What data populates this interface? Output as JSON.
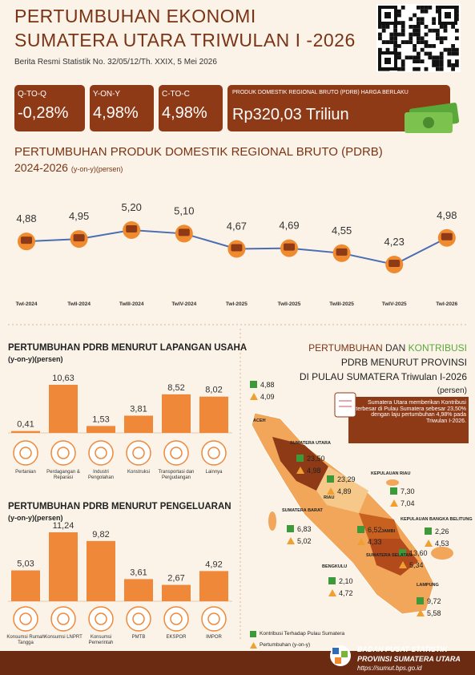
{
  "header": {
    "title_line1": "PERTUMBUHAN EKONOMI",
    "title_line2": "SUMATERA UTARA TRIWULAN I -2026",
    "subtitle": "Berita Resmi Statistik No. 32/05/12/Th. XXIX, 5 Mei 2026"
  },
  "kpis": [
    {
      "label": "Q-TO-Q",
      "value": "-0,28%"
    },
    {
      "label": "Y-ON-Y",
      "value": "4,98%"
    },
    {
      "label": "C-TO-C",
      "value": "4,98%"
    },
    {
      "label": "PRODUK DOMESTIK REGIONAL BRUTO (PDRB) HARGA BERLAKU",
      "value": "Rp320,03 Triliun"
    }
  ],
  "chart_data": [
    {
      "type": "line",
      "title": "PERTUMBUHAN PRODUK DOMESTIK REGIONAL BRUTO (PDRB)",
      "subtitle": "2024-2026",
      "unit_label": "(y-on-y)(persen)",
      "categories": [
        "TwI-2024",
        "TwII-2024",
        "TwIII-2024",
        "TwIV-2024",
        "TwI-2025",
        "TwII-2025",
        "TwIII-2025",
        "TwIV-2025",
        "TwI-2026"
      ],
      "values": [
        4.88,
        4.95,
        5.2,
        5.1,
        4.67,
        4.69,
        4.55,
        4.23,
        4.98
      ],
      "value_labels": [
        "4,88",
        "4,95",
        "5,20",
        "5,10",
        "4,67",
        "4,69",
        "4,55",
        "4,23",
        "4,98"
      ],
      "color": "#4a6db3",
      "marker_color": "#f08a2e"
    },
    {
      "type": "bar",
      "title": "PERTUMBUHAN PDRB MENURUT LAPANGAN USAHA",
      "subtitle": "(y-on-y)(persen)",
      "categories": [
        "Pertanian",
        "Perdagangan & Reparasi",
        "Industri Pengolahan",
        "Konstruksi",
        "Transportasi dan Pergudangan",
        "Lainnya"
      ],
      "values": [
        0.41,
        10.63,
        1.53,
        3.81,
        8.52,
        8.02
      ],
      "value_labels": [
        "0,41",
        "10,63",
        "1,53",
        "3,81",
        "8,52",
        "8,02"
      ],
      "color": "#f0883a"
    },
    {
      "type": "bar",
      "title": "PERTUMBUHAN PDRB MENURUT PENGELUARAN",
      "subtitle": "(y-on-y)(persen)",
      "categories": [
        "Konsumsi Rumah Tangga",
        "Konsumsi LNPRT",
        "Konsumsi Pemerintah",
        "PMTB",
        "EKSPOR",
        "IMPOR"
      ],
      "values": [
        5.03,
        11.24,
        9.82,
        3.61,
        2.67,
        4.92
      ],
      "value_labels": [
        "5,03",
        "11,24",
        "9,82",
        "3,61",
        "2,67",
        "4,92"
      ],
      "color": "#f0883a"
    }
  ],
  "map": {
    "title_part1": "PERTUMBUHAN",
    "title_part2": "DAN",
    "title_part3": "KONTRIBUSI",
    "title_line2": "PDRB MENURUT PROVINSI",
    "title_line3": "DI PULAU SUMATERA Triwulan I-2026",
    "unit": "(persen)",
    "note": "Sumatera Utara memberikan Kontribusi terbesar di Pulau Sumatera sebesar 23,50% dengan laju pertumbuhan 4,98% pada Triwulan I-2026.",
    "provinces": [
      {
        "name": "ACEH",
        "contribution": "4,88",
        "growth": "4,09"
      },
      {
        "name": "SUMATERA UTARA",
        "contribution": "23,50",
        "growth": "4,98"
      },
      {
        "name": "RIAU",
        "contribution": "23,29",
        "growth": "4,89"
      },
      {
        "name": "KEPULAUAN RIAU",
        "contribution": "7,30",
        "growth": "7,04"
      },
      {
        "name": "SUMATERA BARAT",
        "contribution": "6,83",
        "growth": "5,02"
      },
      {
        "name": "JAMBI",
        "contribution": "6,52",
        "growth": "4,33"
      },
      {
        "name": "KEPULAUAN BANGKA BELITUNG",
        "contribution": "2,26",
        "growth": "4,53"
      },
      {
        "name": "SUMATERA SELATAN",
        "contribution": "13,60",
        "growth": "5,34"
      },
      {
        "name": "BENGKULU",
        "contribution": "2,10",
        "growth": "4,72"
      },
      {
        "name": "LAMPUNG",
        "contribution": "9,72",
        "growth": "5,58"
      }
    ],
    "legend_contribution": "Kontribusi Terhadap Pulau Sumatera",
    "legend_growth": "Pertumbuhan (y-on-y)"
  },
  "footer": {
    "org": "BADAN PUSAT STATISTIK",
    "province": "PROVINSI SUMATERA UTARA",
    "url": "https://sumut.bps.go.id"
  }
}
